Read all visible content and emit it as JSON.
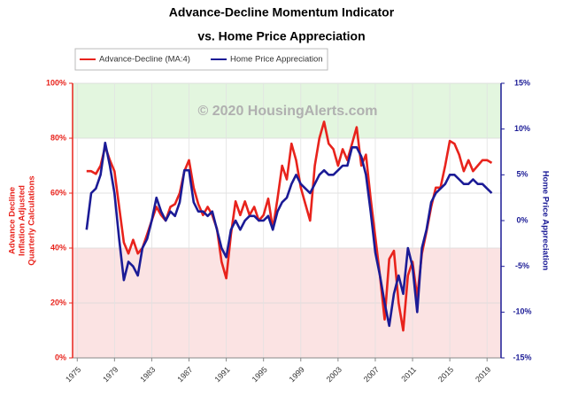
{
  "chart_data": {
    "type": "line",
    "title": "Advance-Decline Momentum Indicator",
    "subtitle": "vs.  Home Price Appreciation",
    "annotation": "© 2020 HousingAlerts.com",
    "ylabel": [
      "Advance Decline",
      "Inflation Adjusted",
      "Quarterly Calculations"
    ],
    "y2label": "Home Price Appreciation",
    "x": [
      1976,
      1976.5,
      1977,
      1977.5,
      1978,
      1978.5,
      1979,
      1979.5,
      1980,
      1980.5,
      1981,
      1981.5,
      1982,
      1982.5,
      1983,
      1983.5,
      1984,
      1984.5,
      1985,
      1985.5,
      1986,
      1986.5,
      1987,
      1987.5,
      1988,
      1988.5,
      1989,
      1989.5,
      1990,
      1990.5,
      1991,
      1991.5,
      1992,
      1992.5,
      1993,
      1993.5,
      1994,
      1994.5,
      1995,
      1995.5,
      1996,
      1996.5,
      1997,
      1997.5,
      1998,
      1998.5,
      1999,
      1999.5,
      2000,
      2000.5,
      2001,
      2001.5,
      2002,
      2002.5,
      2003,
      2003.5,
      2004,
      2004.5,
      2005,
      2005.5,
      2006,
      2006.5,
      2007,
      2007.5,
      2008,
      2008.5,
      2009,
      2009.5,
      2010,
      2010.5,
      2011,
      2011.5,
      2012,
      2012.5,
      2013,
      2013.5,
      2014,
      2014.5,
      2015,
      2015.5,
      2016,
      2016.5,
      2017,
      2017.5,
      2018,
      2018.5,
      2019,
      2019.5
    ],
    "series": [
      {
        "name": "Advance-Decline (MA:4)",
        "color": "#e8231c",
        "axis": "y",
        "values": [
          68,
          68,
          67,
          70,
          77,
          72,
          68,
          55,
          42,
          38,
          43,
          38,
          40,
          45,
          50,
          55,
          52,
          50,
          55,
          56,
          60,
          68,
          72,
          62,
          56,
          52,
          55,
          52,
          47,
          35,
          29,
          45,
          57,
          52,
          57,
          52,
          55,
          50,
          52,
          58,
          47,
          58,
          70,
          65,
          78,
          72,
          62,
          56,
          50,
          70,
          80,
          86,
          78,
          76,
          70,
          76,
          72,
          78,
          84,
          70,
          74,
          58,
          44,
          30,
          14,
          36,
          39,
          20,
          10,
          30,
          35,
          22,
          38,
          46,
          55,
          62,
          62,
          70,
          79,
          78,
          74,
          68,
          72,
          68,
          70,
          72,
          72,
          71
        ]
      },
      {
        "name": "Home Price Appreciation",
        "color": "#1b1b96",
        "axis": "y2",
        "values": [
          -1,
          3,
          3.5,
          5,
          8.5,
          6,
          3,
          -2,
          -6.5,
          -4.5,
          -5,
          -6,
          -3,
          -2,
          0,
          2.5,
          1,
          0,
          1,
          0.5,
          2,
          5.5,
          5.5,
          2,
          1,
          1,
          0.5,
          1,
          -1,
          -3,
          -4,
          -1,
          0,
          -1,
          0,
          0.5,
          0.5,
          0,
          0,
          0.5,
          -1,
          1,
          2,
          2.5,
          4,
          5,
          4,
          3.5,
          3,
          4,
          5,
          5.5,
          5,
          5,
          5.5,
          6,
          6,
          8,
          8,
          7,
          5,
          1,
          -3.5,
          -6,
          -9,
          -11.5,
          -8,
          -6,
          -8,
          -3,
          -5,
          -10,
          -3,
          -1,
          2,
          3,
          3.5,
          4,
          5,
          5,
          4.5,
          4,
          4,
          4.5,
          4,
          4,
          3.5,
          3
        ]
      }
    ],
    "xlim": [
      1974.5,
      2020.5
    ],
    "xticks": [
      1975,
      1979,
      1983,
      1987,
      1991,
      1995,
      1999,
      2003,
      2007,
      2011,
      2015,
      2019
    ],
    "ylim": [
      0,
      100
    ],
    "yticks": [
      {
        "value": 0,
        "label": "0%"
      },
      {
        "value": 20,
        "label": "20%"
      },
      {
        "value": 40,
        "label": "40%"
      },
      {
        "value": 60,
        "label": "60%"
      },
      {
        "value": 80,
        "label": "80%"
      },
      {
        "value": 100,
        "label": "100%"
      }
    ],
    "y2lim": [
      -15,
      15
    ],
    "y2ticks": [
      {
        "value": -15,
        "label": "-15%"
      },
      {
        "value": -10,
        "label": "-10%"
      },
      {
        "value": -5,
        "label": "-5%"
      },
      {
        "value": 0,
        "label": "0%"
      },
      {
        "value": 5,
        "label": "5%"
      },
      {
        "value": 10,
        "label": "10%"
      },
      {
        "value": 15,
        "label": "15%"
      }
    ],
    "bands": [
      {
        "from": 80,
        "to": 100,
        "color": "#e3f6df"
      },
      {
        "from": 0,
        "to": 40,
        "color": "#fbe3e3"
      }
    ],
    "grid": true,
    "legend": "top-left"
  }
}
